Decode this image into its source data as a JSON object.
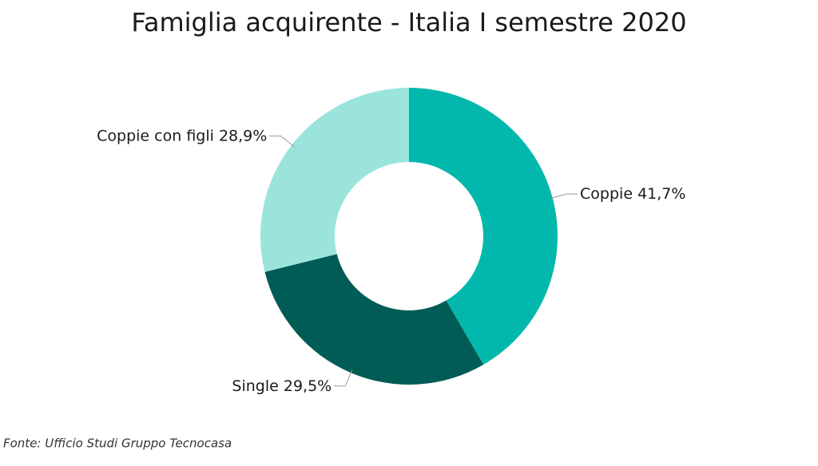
{
  "chart_data": {
    "type": "pie",
    "title": "Famiglia acquirente - Italia I semestre 2020",
    "categories": [
      "Coppie",
      "Single",
      "Coppie con figli"
    ],
    "values": [
      41.7,
      29.5,
      28.9
    ],
    "value_labels": [
      "41,7%",
      "29,5%",
      "28,9%"
    ],
    "colors": [
      "#02b8ad",
      "#005c55",
      "#9be4dc"
    ],
    "source": "Fonte: Ufficio Studi Gruppo Tecnocasa"
  }
}
